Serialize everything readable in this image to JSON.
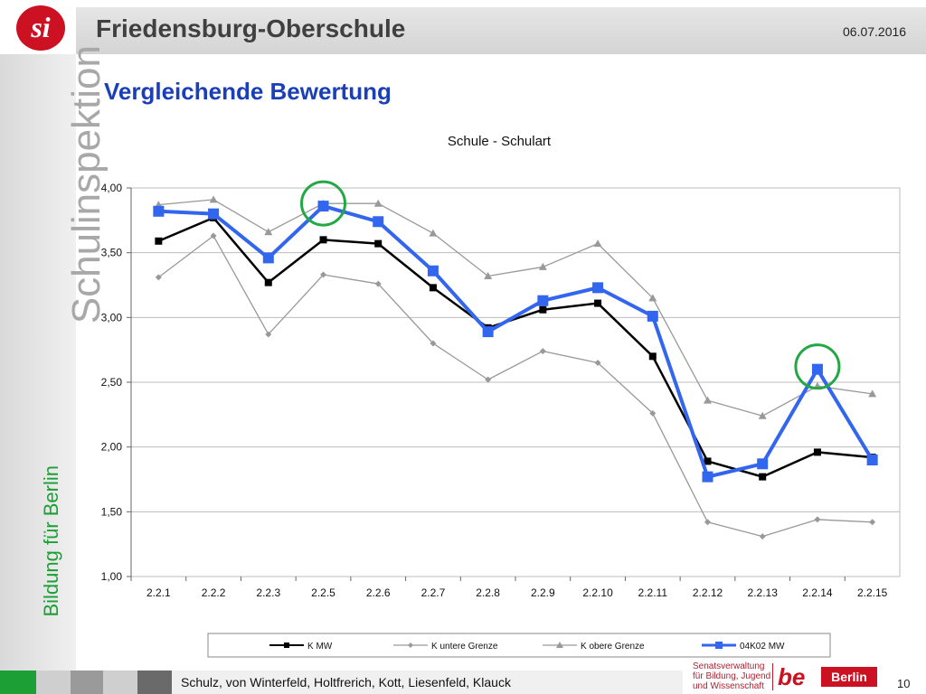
{
  "header": {
    "logo_text": "si",
    "school_name": "Friedensburg-Oberschule",
    "date": "06.07.2016"
  },
  "sidebar": {
    "vertical_title": "Schulinspektion",
    "vertical_subtitle": "Bildung für Berlin"
  },
  "slide": {
    "title": "Vergleichende Bewertung"
  },
  "chart_data": {
    "type": "line",
    "title": "Schule - Schulart",
    "categories": [
      "2.2.1",
      "2.2.2",
      "2.2.3",
      "2.2.5",
      "2.2.6",
      "2.2.7",
      "2.2.8",
      "2.2.9",
      "2.2.10",
      "2.2.11",
      "2.2.12",
      "2.2.13",
      "2.2.14",
      "2.2.15"
    ],
    "ylim": [
      1.0,
      4.0
    ],
    "yticks": [
      "1,00",
      "1,50",
      "2,00",
      "2,50",
      "3,00",
      "3,50",
      "4,00"
    ],
    "grid": true,
    "legend_position": "bottom",
    "series": [
      {
        "name": "K MW",
        "color": "#000000",
        "marker": "square",
        "values": [
          3.59,
          3.77,
          3.27,
          3.6,
          3.57,
          3.23,
          2.92,
          3.06,
          3.11,
          2.7,
          1.89,
          1.77,
          1.96,
          1.92
        ]
      },
      {
        "name": "K untere Grenze",
        "color": "#999999",
        "marker": "diamond",
        "values": [
          3.31,
          3.63,
          2.87,
          3.33,
          3.26,
          2.8,
          2.52,
          2.74,
          2.65,
          2.26,
          1.42,
          1.31,
          1.44,
          1.42
        ]
      },
      {
        "name": "K obere Grenze",
        "color": "#999999",
        "marker": "triangle",
        "values": [
          3.87,
          3.91,
          3.66,
          3.88,
          3.88,
          3.65,
          3.32,
          3.39,
          3.57,
          3.15,
          2.36,
          2.24,
          2.47,
          2.41
        ]
      },
      {
        "name": "04K02 MW",
        "color": "#3366ee",
        "marker": "square",
        "values": [
          3.82,
          3.8,
          3.46,
          3.86,
          3.74,
          3.36,
          2.89,
          3.13,
          3.23,
          3.01,
          1.77,
          1.87,
          2.6,
          1.9
        ]
      }
    ],
    "highlighted_categories": [
      "2.2.5",
      "2.2.14"
    ],
    "highlight_color": "#22a844"
  },
  "footer": {
    "authors": "Schulz, von Winterfeld, Holtfrerich, Kott, Liesenfeld, Klauck",
    "institution": "Senatsverwaltung\nfür Bildung, Jugend\nund Wissenschaft",
    "be_logo": "be",
    "berlin_badge": "Berlin",
    "page_number": "10"
  }
}
